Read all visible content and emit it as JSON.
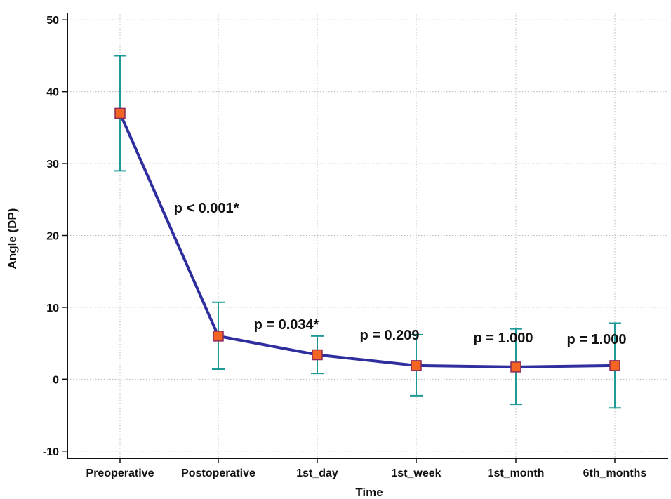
{
  "chart_data": {
    "type": "line",
    "title": "",
    "xlabel": "Time",
    "ylabel": "Angle (DP)",
    "categories": [
      "Preoperative",
      "Postoperative",
      "1st_day",
      "1st_week",
      "1st_month",
      "6th_months"
    ],
    "series": [
      {
        "values": [
          37,
          6,
          3.4,
          1.9,
          1.7,
          1.9
        ],
        "error_low": [
          29,
          1.4,
          0.8,
          -2.3,
          -3.5,
          -4
        ],
        "error_high": [
          45,
          10.7,
          6,
          6.2,
          7,
          7.8
        ],
        "line_color": "#2e2e9e",
        "marker_color": "#f26522",
        "marker_edge_color": "#8c2a5a",
        "errorbar_color": "#1f9a96"
      }
    ],
    "ylim": [
      -11,
      51
    ],
    "yticks": [
      -10,
      0,
      10,
      20,
      30,
      40,
      50
    ],
    "grid": true,
    "annotations": [
      "p < 0.001*",
      "p = 0.034*",
      "p = 0.209",
      "p = 1.000",
      "p = 1.000"
    ]
  }
}
